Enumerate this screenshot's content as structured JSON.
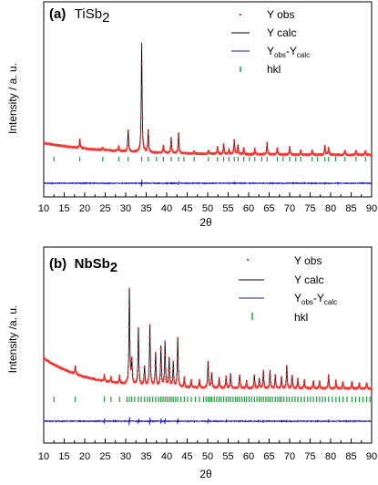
{
  "figure": {
    "background": "#ffffff"
  },
  "colors": {
    "obs": "#ee3b3b",
    "calc": "#000000",
    "diff": "#1a1aa8",
    "hkl": "#1e9a3a"
  },
  "chart_data": [
    {
      "type": "line",
      "panel_letter": "(a)",
      "compound": "TiSb",
      "compound_sub": "2",
      "xlabel": "2θ",
      "ylabel": "Intensity / a. u.",
      "xlim": [
        10,
        90
      ],
      "x_ticks": [
        "10",
        "15",
        "20",
        "25",
        "30",
        "35",
        "40",
        "45",
        "50",
        "55",
        "60",
        "65",
        "70",
        "75",
        "80",
        "85",
        "90"
      ],
      "legend": [
        {
          "id": "obs",
          "text": "Y obs"
        },
        {
          "id": "calc",
          "text": "Y calc"
        },
        {
          "id": "diff",
          "text": "Y",
          "sub1": "obs",
          "mid": "-Y",
          "sub2": "calc"
        },
        {
          "id": "hkl",
          "text": "hkl"
        }
      ],
      "profile": {
        "a": 13,
        "b": 0.06,
        "c": 15
      },
      "peaks": [
        [
          18.8,
          9
        ],
        [
          24.4,
          3
        ],
        [
          28.3,
          5
        ],
        [
          30.6,
          24
        ],
        [
          33.9,
          120
        ],
        [
          35.5,
          24
        ],
        [
          39.2,
          8
        ],
        [
          41.1,
          17
        ],
        [
          42.9,
          22
        ],
        [
          46.7,
          3
        ],
        [
          50.2,
          4
        ],
        [
          52.4,
          8
        ],
        [
          53.9,
          11
        ],
        [
          55.2,
          5
        ],
        [
          56.5,
          16
        ],
        [
          57.4,
          10
        ],
        [
          58.8,
          7
        ],
        [
          61.5,
          6
        ],
        [
          64.5,
          13
        ],
        [
          67.0,
          7
        ],
        [
          70.0,
          8
        ],
        [
          72.7,
          5
        ],
        [
          75.5,
          5
        ],
        [
          78.6,
          10
        ],
        [
          79.5,
          8
        ],
        [
          83.5,
          5
        ],
        [
          86.2,
          5
        ],
        [
          88.5,
          4
        ]
      ],
      "hkl_positions": [
        12.5,
        18.8,
        24.4,
        28.3,
        30.6,
        33.9,
        35.5,
        37.5,
        39.2,
        41.1,
        42.9,
        44.2,
        46.7,
        50.2,
        52.4,
        53.9,
        55.2,
        56.5,
        57.4,
        58.8,
        60.2,
        61.5,
        63.2,
        64.5,
        67.0,
        68.4,
        70.0,
        71.5,
        72.7,
        75.5,
        76.8,
        78.6,
        79.5,
        81.2,
        83.5,
        86.2,
        88.5
      ],
      "diff_features": [
        [
          33.9,
          5
        ],
        [
          42.9,
          2
        ],
        [
          56.5,
          2
        ],
        [
          78.6,
          1.5
        ]
      ]
    },
    {
      "type": "line",
      "panel_letter": "(b)",
      "compound": "NbSb",
      "compound_sub": "2",
      "xlabel": "2θ",
      "ylabel": "Intensity /a. u.",
      "xlim": [
        10,
        90
      ],
      "x_ticks": [
        "10",
        "15",
        "20",
        "25",
        "30",
        "35",
        "40",
        "45",
        "50",
        "55",
        "60",
        "65",
        "70",
        "75",
        "80",
        "85",
        "90"
      ],
      "legend": [
        {
          "id": "obs",
          "text": "Y obs"
        },
        {
          "id": "calc",
          "text": "Y calc"
        },
        {
          "id": "diff",
          "text": "Y",
          "sub1": "obs",
          "mid": "-Y",
          "sub2": "calc"
        },
        {
          "id": "hkl",
          "text": "hkl"
        }
      ],
      "profile": {
        "a": 32,
        "b": 0.095,
        "c": 13
      },
      "peaks": [
        [
          17.7,
          8
        ],
        [
          24.8,
          6
        ],
        [
          26.4,
          5
        ],
        [
          28.5,
          8
        ],
        [
          30.9,
          100
        ],
        [
          31.5,
          25
        ],
        [
          33.1,
          60
        ],
        [
          34.6,
          20
        ],
        [
          35.9,
          64
        ],
        [
          37.3,
          35
        ],
        [
          38.6,
          42
        ],
        [
          39.6,
          46
        ],
        [
          40.6,
          30
        ],
        [
          41.6,
          25
        ],
        [
          42.7,
          52
        ],
        [
          44.3,
          10
        ],
        [
          46.0,
          8
        ],
        [
          48.0,
          8
        ],
        [
          50.1,
          28
        ],
        [
          51.0,
          16
        ],
        [
          52.8,
          10
        ],
        [
          54.5,
          12
        ],
        [
          55.6,
          15
        ],
        [
          57.8,
          14
        ],
        [
          59.5,
          8
        ],
        [
          61.4,
          14
        ],
        [
          62.6,
          10
        ],
        [
          63.6,
          18
        ],
        [
          65.2,
          18
        ],
        [
          66.5,
          14
        ],
        [
          68.0,
          12
        ],
        [
          69.3,
          24
        ],
        [
          70.6,
          14
        ],
        [
          72.0,
          10
        ],
        [
          73.6,
          9
        ],
        [
          75.8,
          8
        ],
        [
          77.3,
          8
        ],
        [
          79.5,
          14
        ],
        [
          81.3,
          8
        ],
        [
          83.0,
          7
        ],
        [
          85.2,
          7
        ],
        [
          87.0,
          6
        ],
        [
          88.8,
          6
        ]
      ],
      "hkl_positions": [
        12.5,
        17.7,
        24.8,
        26.4,
        28.5,
        30.3,
        30.9,
        31.5,
        32.2,
        33.1,
        33.8,
        34.6,
        35.3,
        35.9,
        36.6,
        37.3,
        38.0,
        38.6,
        39.1,
        39.6,
        40.1,
        40.6,
        41.1,
        41.6,
        42.2,
        42.7,
        43.5,
        44.3,
        45.1,
        46.0,
        47.0,
        48.0,
        49.0,
        49.6,
        50.1,
        50.6,
        51.0,
        51.6,
        52.2,
        52.8,
        53.3,
        53.9,
        54.5,
        55.1,
        55.6,
        56.2,
        56.8,
        57.3,
        57.8,
        58.4,
        59.0,
        59.5,
        60.1,
        60.7,
        61.4,
        62.0,
        62.6,
        63.1,
        63.6,
        64.2,
        64.7,
        65.2,
        65.8,
        66.5,
        67.1,
        67.6,
        68.0,
        68.6,
        69.3,
        69.9,
        70.6,
        71.3,
        72.0,
        72.8,
        73.6,
        74.4,
        75.1,
        75.8,
        76.6,
        77.3,
        78.0,
        78.7,
        79.5,
        80.4,
        81.3,
        82.1,
        83.0,
        84.0,
        85.2,
        86.1,
        87.0,
        87.9,
        88.8,
        89.6
      ],
      "diff_features": [
        [
          24.8,
          4
        ],
        [
          30.9,
          6
        ],
        [
          33.1,
          4
        ],
        [
          35.9,
          5
        ],
        [
          38.6,
          4
        ],
        [
          39.6,
          4
        ],
        [
          42.7,
          4
        ],
        [
          50.1,
          3
        ],
        [
          54.5,
          2
        ],
        [
          63.6,
          2
        ],
        [
          69.3,
          2
        ],
        [
          79.5,
          2
        ]
      ]
    }
  ]
}
